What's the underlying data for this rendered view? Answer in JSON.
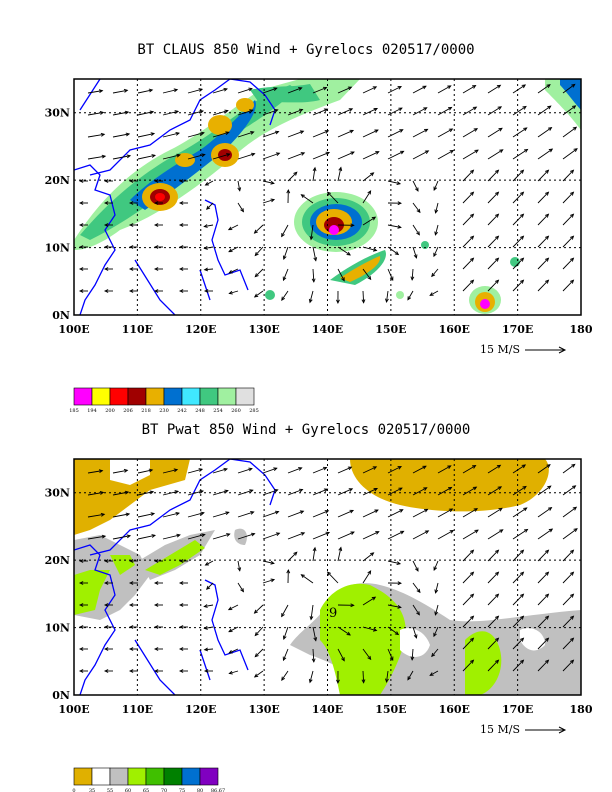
{
  "panels": [
    {
      "title": "BT CLAUS 850 Wind + Gyrelocs 020517/0000",
      "lat_labels": [
        "0N",
        "10N",
        "20N",
        "30N"
      ],
      "lon_labels": [
        "100E",
        "110E",
        "120E",
        "130E",
        "140E",
        "150E",
        "160E",
        "170E",
        "180"
      ],
      "vector_label": "15 M/S",
      "colorbar": {
        "labels": [
          "185",
          "194",
          "200",
          "206",
          "218",
          "230",
          "242",
          "248",
          "254",
          "260",
          "285"
        ],
        "colors": [
          "#ff00ff",
          "#ffff00",
          "#ff0000",
          "#a00000",
          "#e8b000",
          "#0070d0",
          "#40e8ff",
          "#40c880",
          "#a0f0a0",
          "#e0e0e0"
        ]
      }
    },
    {
      "title": "BT Pwat 850 Wind + Gyrelocs 020517/0000",
      "lat_labels": [
        "0N",
        "10N",
        "20N",
        "30N"
      ],
      "lon_labels": [
        "100E",
        "110E",
        "120E",
        "130E",
        "140E",
        "150E",
        "160E",
        "170E",
        "180"
      ],
      "vector_label": "15 M/S",
      "gyre_label": "9",
      "colorbar": {
        "labels": [
          "0",
          "35",
          "55",
          "60",
          "65",
          "70",
          "75",
          "80",
          "86.67"
        ],
        "colors": [
          "#e0b000",
          "#ffffff",
          "#c0c0c0",
          "#a0f000",
          "#40c000",
          "#008000",
          "#0070d0",
          "#8000c0"
        ]
      }
    }
  ]
}
